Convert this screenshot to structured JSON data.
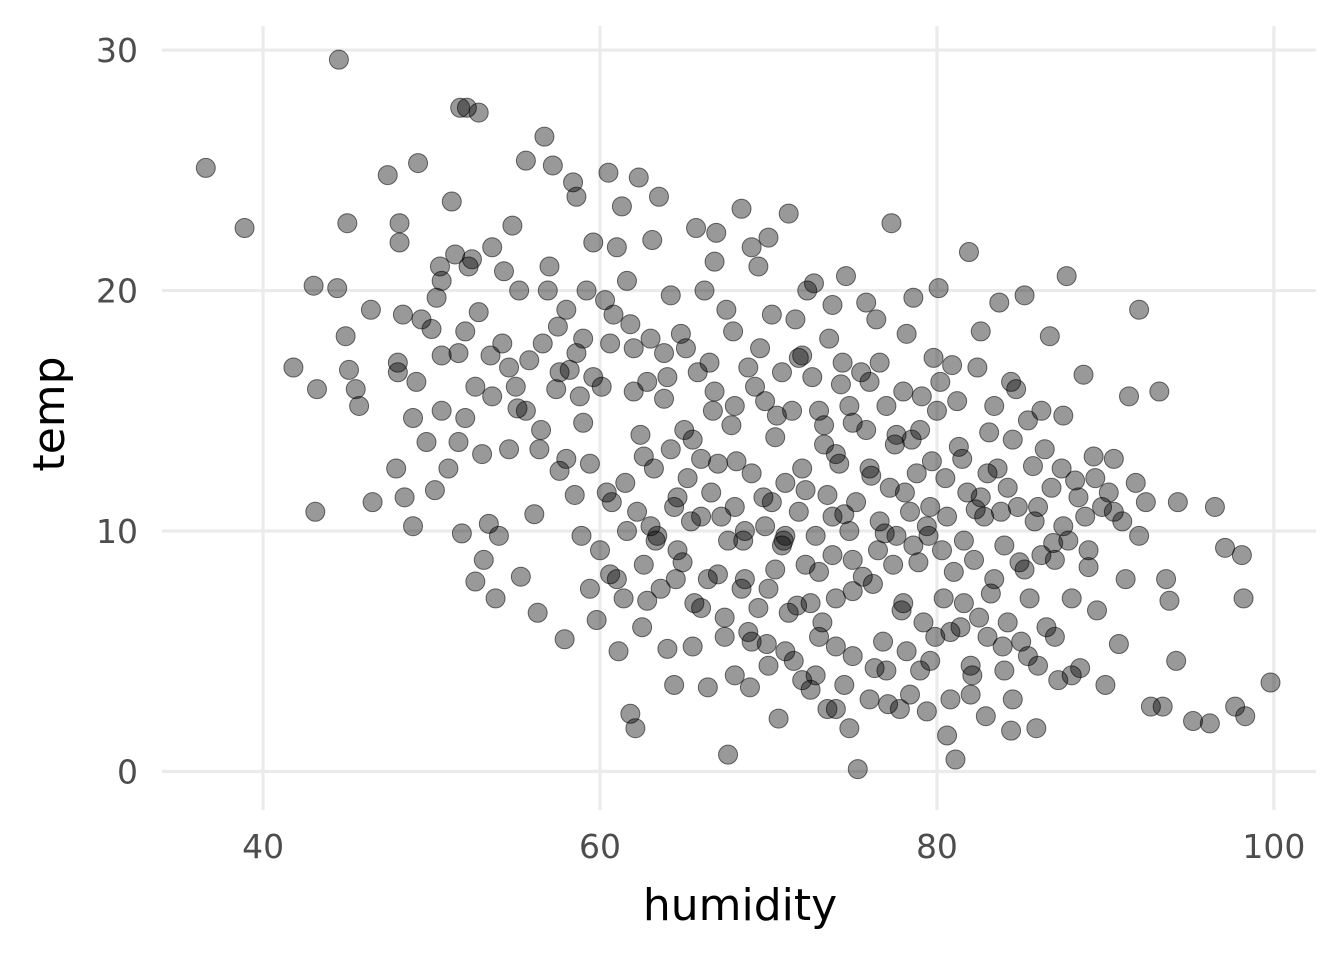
{
  "chart_data": {
    "type": "scatter",
    "xlabel": "humidity",
    "ylabel": "temp",
    "xlim": [
      34,
      102.5
    ],
    "ylim": [
      -1.6,
      31
    ],
    "x_ticks": [
      40,
      60,
      80,
      100
    ],
    "y_ticks": [
      0,
      10,
      20,
      30
    ],
    "x_tick_labels": [
      "40",
      "60",
      "80",
      "100"
    ],
    "y_tick_labels": [
      "0",
      "10",
      "20",
      "30"
    ],
    "grid": true,
    "legend": "none",
    "point_color": "#000000",
    "point_alpha": 0.4,
    "points": [
      [
        36.6,
        25.1
      ],
      [
        38.9,
        22.6
      ],
      [
        44.5,
        29.6
      ],
      [
        51.7,
        27.6
      ],
      [
        52.1,
        27.6
      ],
      [
        52.8,
        27.4
      ],
      [
        41.8,
        16.8
      ],
      [
        43.0,
        20.2
      ],
      [
        43.2,
        15.9
      ],
      [
        43.1,
        10.8
      ],
      [
        44.4,
        20.1
      ],
      [
        45.0,
        22.8
      ],
      [
        44.9,
        18.1
      ],
      [
        45.1,
        16.7
      ],
      [
        45.5,
        15.9
      ],
      [
        45.7,
        15.2
      ],
      [
        46.4,
        19.2
      ],
      [
        46.5,
        11.2
      ],
      [
        47.4,
        24.8
      ],
      [
        47.9,
        12.6
      ],
      [
        48.0,
        16.6
      ],
      [
        48.0,
        17.0
      ],
      [
        48.1,
        22.0
      ],
      [
        48.1,
        22.8
      ],
      [
        48.3,
        19.0
      ],
      [
        48.4,
        11.4
      ],
      [
        48.9,
        10.2
      ],
      [
        48.9,
        14.7
      ],
      [
        49.1,
        16.2
      ],
      [
        49.2,
        25.3
      ],
      [
        49.4,
        18.8
      ],
      [
        49.7,
        13.7
      ],
      [
        50.0,
        18.4
      ],
      [
        50.2,
        11.7
      ],
      [
        50.3,
        19.7
      ],
      [
        50.5,
        21.0
      ],
      [
        50.6,
        17.3
      ],
      [
        51.0,
        12.6
      ],
      [
        51.2,
        23.7
      ],
      [
        51.4,
        21.5
      ],
      [
        51.6,
        13.7
      ],
      [
        51.8,
        9.9
      ],
      [
        52.0,
        18.3
      ],
      [
        52.0,
        14.7
      ],
      [
        52.4,
        21.3
      ],
      [
        52.6,
        7.9
      ],
      [
        52.8,
        19.1
      ],
      [
        53.0,
        13.2
      ],
      [
        53.1,
        8.8
      ],
      [
        53.4,
        10.3
      ],
      [
        53.5,
        17.3
      ],
      [
        53.8,
        7.2
      ],
      [
        54.0,
        9.8
      ],
      [
        54.3,
        20.8
      ],
      [
        54.6,
        13.4
      ],
      [
        54.8,
        22.7
      ],
      [
        55.1,
        15.1
      ],
      [
        55.3,
        8.1
      ],
      [
        55.6,
        25.4
      ],
      [
        55.8,
        17.1
      ],
      [
        56.1,
        10.7
      ],
      [
        56.3,
        6.6
      ],
      [
        56.5,
        14.2
      ],
      [
        56.7,
        26.4
      ],
      [
        56.9,
        20.0
      ],
      [
        57.2,
        25.2
      ],
      [
        57.4,
        15.9
      ],
      [
        57.6,
        12.5
      ],
      [
        57.9,
        5.5
      ],
      [
        58.0,
        19.2
      ],
      [
        58.2,
        16.7
      ],
      [
        58.4,
        24.5
      ],
      [
        58.6,
        23.9
      ],
      [
        58.9,
        9.8
      ],
      [
        59.0,
        18.0
      ],
      [
        59.4,
        7.6
      ],
      [
        59.6,
        22.0
      ],
      [
        59.8,
        6.3
      ],
      [
        60.1,
        16.0
      ],
      [
        60.3,
        19.6
      ],
      [
        60.5,
        24.9
      ],
      [
        60.7,
        11.2
      ],
      [
        61.0,
        8.0
      ],
      [
        61.1,
        5.0
      ],
      [
        61.3,
        23.5
      ],
      [
        61.6,
        20.4
      ],
      [
        61.8,
        2.4
      ],
      [
        62.0,
        17.6
      ],
      [
        62.1,
        1.8
      ],
      [
        62.3,
        24.7
      ],
      [
        62.6,
        13.1
      ],
      [
        62.8,
        7.1
      ],
      [
        63.1,
        22.1
      ],
      [
        63.3,
        9.6
      ],
      [
        63.5,
        23.9
      ],
      [
        63.8,
        15.5
      ],
      [
        64.0,
        5.1
      ],
      [
        64.2,
        19.8
      ],
      [
        64.4,
        3.6
      ],
      [
        64.6,
        11.4
      ],
      [
        64.9,
        8.7
      ],
      [
        65.1,
        17.6
      ],
      [
        65.5,
        13.8
      ],
      [
        65.7,
        22.6
      ],
      [
        66.0,
        6.8
      ],
      [
        66.2,
        20.0
      ],
      [
        66.4,
        3.5
      ],
      [
        66.7,
        15.0
      ],
      [
        66.9,
        22.4
      ],
      [
        67.2,
        10.6
      ],
      [
        67.4,
        5.6
      ],
      [
        67.6,
        0.7
      ],
      [
        67.9,
        18.3
      ],
      [
        68.1,
        12.9
      ],
      [
        68.4,
        23.4
      ],
      [
        68.6,
        8.0
      ],
      [
        68.9,
        3.5
      ],
      [
        69.2,
        16.0
      ],
      [
        69.4,
        21.0
      ],
      [
        69.7,
        11.4
      ],
      [
        69.9,
        5.3
      ],
      [
        70.2,
        19.0
      ],
      [
        70.4,
        13.9
      ],
      [
        70.6,
        2.2
      ],
      [
        70.9,
        9.6
      ],
      [
        71.2,
        23.2
      ],
      [
        71.4,
        15.0
      ],
      [
        71.7,
        6.9
      ],
      [
        72.0,
        17.3
      ],
      [
        72.2,
        11.7
      ],
      [
        72.5,
        3.4
      ],
      [
        72.7,
        20.3
      ],
      [
        73.0,
        8.3
      ],
      [
        73.3,
        13.6
      ],
      [
        73.5,
        2.6
      ],
      [
        73.8,
        19.4
      ],
      [
        74.0,
        5.2
      ],
      [
        74.3,
        16.1
      ],
      [
        74.5,
        10.7
      ],
      [
        74.8,
        1.8
      ],
      [
        75.0,
        14.5
      ],
      [
        75.3,
        0.1
      ],
      [
        75.6,
        8.1
      ],
      [
        75.8,
        19.5
      ],
      [
        76.1,
        12.3
      ],
      [
        76.3,
        4.3
      ],
      [
        76.6,
        17.0
      ],
      [
        76.9,
        9.9
      ],
      [
        77.1,
        2.8
      ],
      [
        77.3,
        22.8
      ],
      [
        77.6,
        14.0
      ],
      [
        77.9,
        6.7
      ],
      [
        78.1,
        11.6
      ],
      [
        78.4,
        3.2
      ],
      [
        78.6,
        19.7
      ],
      [
        78.9,
        8.7
      ],
      [
        79.1,
        15.6
      ],
      [
        79.4,
        2.5
      ],
      [
        79.7,
        12.9
      ],
      [
        79.9,
        5.6
      ],
      [
        80.1,
        20.1
      ],
      [
        80.3,
        9.2
      ],
      [
        80.6,
        1.5
      ],
      [
        80.9,
        16.9
      ],
      [
        81.1,
        0.5
      ],
      [
        81.3,
        13.5
      ],
      [
        81.6,
        7.0
      ],
      [
        81.9,
        21.6
      ],
      [
        82.1,
        4.0
      ],
      [
        82.3,
        10.9
      ],
      [
        82.6,
        18.3
      ],
      [
        82.9,
        2.3
      ],
      [
        83.1,
        14.1
      ],
      [
        83.4,
        8.0
      ],
      [
        83.7,
        19.5
      ],
      [
        83.9,
        5.2
      ],
      [
        84.2,
        11.8
      ],
      [
        84.4,
        1.7
      ],
      [
        84.7,
        15.9
      ],
      [
        84.9,
        8.7
      ],
      [
        85.2,
        19.8
      ],
      [
        85.4,
        4.8
      ],
      [
        85.7,
        12.7
      ],
      [
        85.9,
        1.8
      ],
      [
        86.2,
        15.0
      ],
      [
        86.5,
        6.0
      ],
      [
        86.7,
        18.1
      ],
      [
        86.9,
        9.5
      ],
      [
        87.2,
        3.8
      ],
      [
        87.5,
        14.8
      ],
      [
        87.7,
        20.6
      ],
      [
        88.0,
        7.2
      ],
      [
        88.2,
        12.1
      ],
      [
        88.5,
        4.3
      ],
      [
        88.7,
        16.5
      ],
      [
        89.0,
        9.2
      ],
      [
        89.3,
        13.1
      ],
      [
        89.5,
        6.7
      ],
      [
        89.8,
        11.0
      ],
      [
        90.0,
        3.6
      ],
      [
        90.5,
        13.0
      ],
      [
        90.8,
        5.3
      ],
      [
        91.2,
        8.0
      ],
      [
        91.4,
        15.6
      ],
      [
        91.8,
        12.0
      ],
      [
        92.0,
        19.2
      ],
      [
        92.4,
        11.2
      ],
      [
        92.7,
        2.7
      ],
      [
        93.2,
        15.8
      ],
      [
        93.4,
        2.7
      ],
      [
        93.6,
        8.0
      ],
      [
        93.8,
        7.1
      ],
      [
        94.2,
        4.6
      ],
      [
        94.3,
        11.2
      ],
      [
        95.2,
        2.1
      ],
      [
        96.2,
        2.0
      ],
      [
        96.5,
        11.0
      ],
      [
        97.1,
        9.3
      ],
      [
        97.7,
        2.7
      ],
      [
        98.1,
        9.0
      ],
      [
        98.2,
        7.2
      ],
      [
        98.3,
        2.3
      ],
      [
        99.8,
        3.7
      ],
      [
        55.0,
        16.0
      ],
      [
        57.5,
        18.5
      ],
      [
        59.0,
        14.5
      ],
      [
        60.8,
        19.0
      ],
      [
        62.0,
        15.8
      ],
      [
        63.0,
        18.0
      ],
      [
        64.0,
        16.4
      ],
      [
        65.0,
        14.2
      ],
      [
        66.5,
        17.0
      ],
      [
        67.5,
        19.2
      ],
      [
        68.0,
        15.2
      ],
      [
        69.5,
        17.6
      ],
      [
        70.5,
        14.8
      ],
      [
        71.8,
        17.2
      ],
      [
        73.0,
        15.0
      ],
      [
        74.0,
        13.2
      ],
      [
        75.5,
        16.6
      ],
      [
        77.0,
        15.2
      ],
      [
        78.5,
        13.8
      ],
      [
        80.0,
        15.0
      ],
      [
        81.5,
        13.0
      ],
      [
        83.0,
        12.4
      ],
      [
        84.5,
        13.8
      ],
      [
        86.0,
        11.0
      ],
      [
        87.5,
        10.2
      ],
      [
        89.0,
        8.5
      ],
      [
        90.5,
        10.8
      ],
      [
        92.0,
        9.8
      ],
      [
        58.5,
        11.5
      ],
      [
        60.0,
        9.2
      ],
      [
        61.5,
        12.0
      ],
      [
        63.0,
        10.2
      ],
      [
        64.5,
        8.0
      ],
      [
        66.0,
        10.6
      ],
      [
        67.0,
        8.2
      ],
      [
        68.5,
        9.6
      ],
      [
        70.0,
        7.6
      ],
      [
        71.0,
        9.8
      ],
      [
        72.5,
        7.0
      ],
      [
        73.8,
        9.0
      ],
      [
        75.0,
        7.5
      ],
      [
        76.5,
        9.2
      ],
      [
        78.0,
        7.0
      ],
      [
        79.5,
        9.8
      ],
      [
        81.0,
        8.3
      ],
      [
        82.5,
        6.4
      ],
      [
        84.0,
        9.4
      ],
      [
        85.5,
        7.2
      ],
      [
        87.0,
        8.8
      ],
      [
        62.5,
        6.0
      ],
      [
        65.5,
        5.2
      ],
      [
        68.8,
        5.8
      ],
      [
        71.5,
        4.6
      ],
      [
        74.5,
        3.6
      ],
      [
        76.8,
        5.4
      ],
      [
        79.0,
        4.2
      ],
      [
        82.0,
        3.2
      ],
      [
        84.5,
        3.0
      ],
      [
        80.8,
        3.0
      ],
      [
        77.8,
        2.6
      ],
      [
        72.8,
        4.0
      ],
      [
        66.8,
        21.2
      ],
      [
        69.0,
        21.8
      ],
      [
        70.0,
        22.2
      ],
      [
        72.3,
        20.0
      ],
      [
        74.6,
        20.6
      ],
      [
        76.4,
        18.8
      ],
      [
        78.2,
        18.2
      ],
      [
        79.8,
        17.2
      ],
      [
        61.0,
        21.8
      ],
      [
        59.2,
        20.0
      ],
      [
        57.0,
        21.0
      ],
      [
        55.2,
        20.0
      ],
      [
        53.6,
        21.8
      ],
      [
        52.2,
        21.0
      ],
      [
        50.6,
        20.4
      ],
      [
        54.2,
        17.8
      ],
      [
        56.4,
        13.4
      ],
      [
        58.0,
        13.0
      ],
      [
        73.5,
        11.5
      ],
      [
        74.2,
        12.8
      ],
      [
        75.2,
        11.2
      ],
      [
        76.0,
        12.6
      ],
      [
        77.2,
        11.8
      ],
      [
        78.8,
        12.4
      ],
      [
        79.6,
        11.0
      ],
      [
        80.5,
        12.2
      ],
      [
        81.8,
        11.6
      ],
      [
        82.8,
        10.6
      ],
      [
        83.6,
        12.6
      ],
      [
        77.5,
        13.6
      ],
      [
        75.8,
        14.2
      ],
      [
        74.8,
        15.2
      ],
      [
        73.3,
        14.4
      ],
      [
        72.0,
        12.6
      ],
      [
        71.0,
        12.0
      ],
      [
        70.2,
        11.2
      ],
      [
        69.0,
        12.4
      ],
      [
        68.0,
        11.0
      ],
      [
        67.0,
        12.8
      ],
      [
        66.0,
        13.0
      ],
      [
        65.2,
        12.2
      ],
      [
        64.2,
        13.4
      ],
      [
        63.2,
        12.6
      ],
      [
        62.4,
        14.0
      ],
      [
        61.6,
        10.0
      ],
      [
        60.4,
        11.6
      ],
      [
        59.4,
        12.8
      ],
      [
        58.8,
        15.6
      ],
      [
        75.0,
        8.8
      ],
      [
        76.2,
        7.8
      ],
      [
        77.4,
        8.6
      ],
      [
        78.6,
        9.4
      ],
      [
        79.2,
        6.2
      ],
      [
        80.4,
        7.2
      ],
      [
        81.4,
        6.0
      ],
      [
        82.2,
        8.8
      ],
      [
        83.2,
        7.4
      ],
      [
        84.2,
        6.2
      ],
      [
        85.2,
        8.4
      ],
      [
        86.2,
        9.0
      ],
      [
        73.2,
        6.2
      ],
      [
        74.0,
        7.2
      ],
      [
        72.2,
        8.6
      ],
      [
        71.2,
        6.6
      ],
      [
        70.4,
        8.4
      ],
      [
        69.4,
        6.8
      ],
      [
        68.4,
        7.6
      ],
      [
        67.4,
        6.4
      ],
      [
        66.4,
        8.0
      ],
      [
        65.6,
        7.0
      ],
      [
        64.6,
        9.2
      ],
      [
        63.6,
        7.6
      ],
      [
        62.6,
        8.6
      ],
      [
        61.4,
        7.2
      ],
      [
        60.6,
        8.2
      ],
      [
        78.0,
        15.8
      ],
      [
        79.0,
        14.2
      ],
      [
        80.2,
        16.2
      ],
      [
        81.2,
        15.4
      ],
      [
        82.4,
        16.8
      ],
      [
        83.4,
        15.2
      ],
      [
        84.4,
        16.2
      ],
      [
        85.4,
        14.6
      ],
      [
        86.4,
        13.4
      ],
      [
        87.4,
        12.6
      ],
      [
        88.4,
        11.4
      ],
      [
        89.4,
        12.2
      ],
      [
        90.2,
        11.6
      ],
      [
        91.0,
        10.4
      ],
      [
        76.0,
        16.2
      ],
      [
        74.4,
        17.0
      ],
      [
        73.6,
        18.0
      ],
      [
        72.6,
        16.4
      ],
      [
        71.6,
        18.8
      ],
      [
        70.8,
        16.6
      ],
      [
        69.8,
        15.4
      ],
      [
        68.8,
        16.8
      ],
      [
        67.8,
        14.4
      ],
      [
        66.8,
        15.8
      ],
      [
        65.8,
        16.6
      ],
      [
        64.8,
        18.2
      ],
      [
        63.8,
        17.4
      ],
      [
        62.8,
        16.2
      ],
      [
        61.8,
        18.6
      ],
      [
        60.6,
        17.8
      ],
      [
        59.6,
        16.4
      ],
      [
        58.6,
        17.4
      ],
      [
        57.6,
        16.6
      ],
      [
        56.6,
        17.8
      ],
      [
        55.6,
        15.0
      ],
      [
        54.6,
        16.8
      ],
      [
        53.6,
        15.6
      ],
      [
        52.6,
        16.0
      ],
      [
        51.6,
        17.4
      ],
      [
        50.6,
        15.0
      ],
      [
        76.6,
        10.4
      ],
      [
        77.6,
        9.8
      ],
      [
        78.4,
        10.8
      ],
      [
        79.4,
        10.2
      ],
      [
        80.6,
        10.6
      ],
      [
        81.6,
        9.6
      ],
      [
        82.6,
        11.4
      ],
      [
        83.8,
        10.8
      ],
      [
        84.8,
        11.0
      ],
      [
        85.8,
        10.4
      ],
      [
        86.8,
        11.8
      ],
      [
        87.8,
        9.6
      ],
      [
        88.8,
        10.6
      ],
      [
        74.8,
        10.0
      ],
      [
        73.8,
        10.6
      ],
      [
        72.8,
        9.8
      ],
      [
        71.8,
        10.8
      ],
      [
        70.8,
        9.4
      ],
      [
        69.8,
        10.2
      ],
      [
        68.6,
        10.0
      ],
      [
        67.6,
        9.6
      ],
      [
        66.6,
        11.6
      ],
      [
        65.4,
        10.4
      ],
      [
        64.4,
        11.0
      ],
      [
        63.4,
        9.8
      ],
      [
        62.2,
        10.8
      ],
      [
        77.0,
        4.2
      ],
      [
        78.2,
        5.0
      ],
      [
        79.6,
        4.6
      ],
      [
        80.8,
        5.8
      ],
      [
        82.0,
        4.4
      ],
      [
        83.0,
        5.6
      ],
      [
        84.0,
        4.2
      ],
      [
        85.0,
        5.4
      ],
      [
        86.0,
        4.4
      ],
      [
        87.0,
        5.6
      ],
      [
        88.0,
        4.0
      ],
      [
        76.0,
        3.0
      ],
      [
        75.0,
        4.8
      ],
      [
        74.0,
        2.6
      ],
      [
        73.0,
        5.6
      ],
      [
        72.0,
        3.8
      ],
      [
        71.0,
        5.0
      ],
      [
        70.0,
        4.4
      ],
      [
        69.0,
        5.4
      ],
      [
        68.0,
        4.0
      ]
    ]
  }
}
